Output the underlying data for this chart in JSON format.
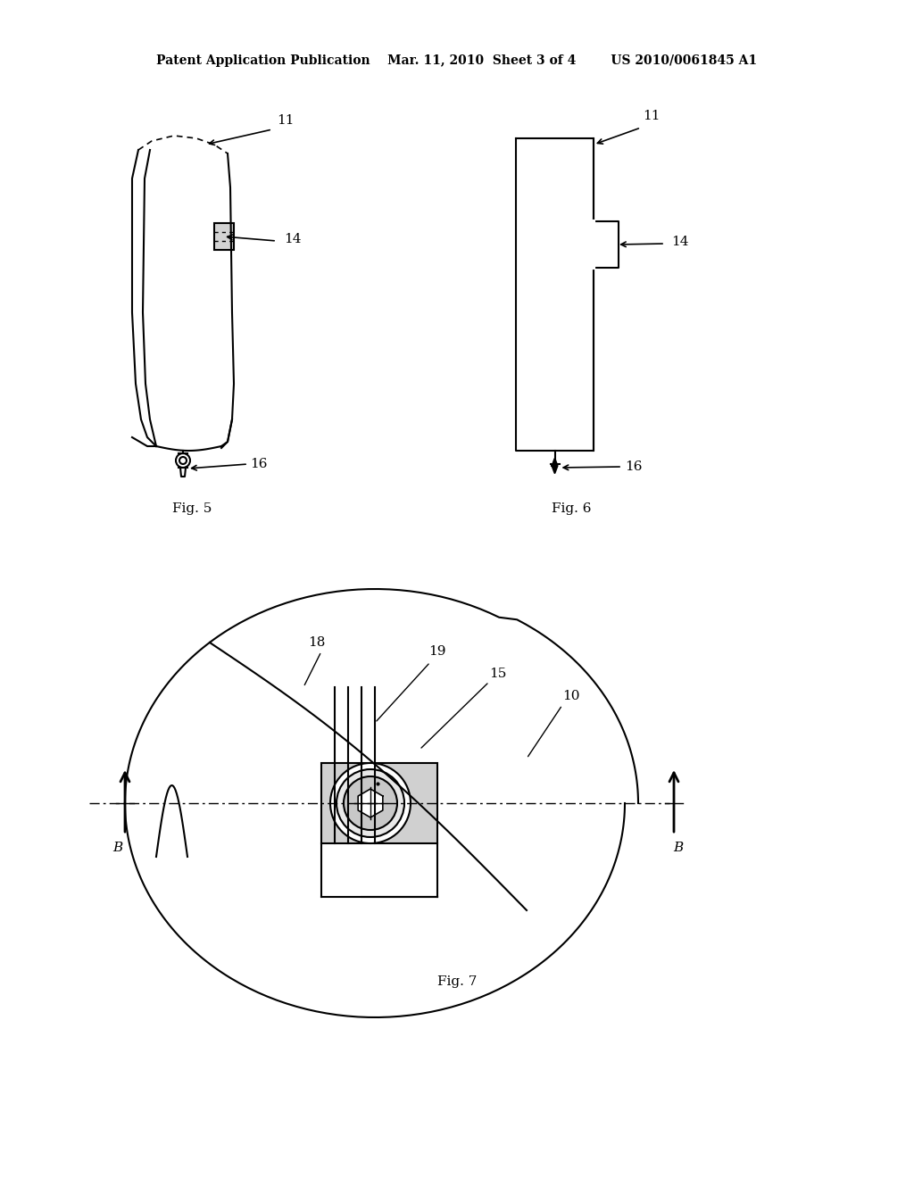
{
  "background_color": "#ffffff",
  "header_text": "Patent Application Publication    Mar. 11, 2010  Sheet 3 of 4        US 2010/0061845 A1",
  "fig5_label": "Fig. 5",
  "fig6_label": "Fig. 6",
  "fig7_label": "Fig. 7"
}
